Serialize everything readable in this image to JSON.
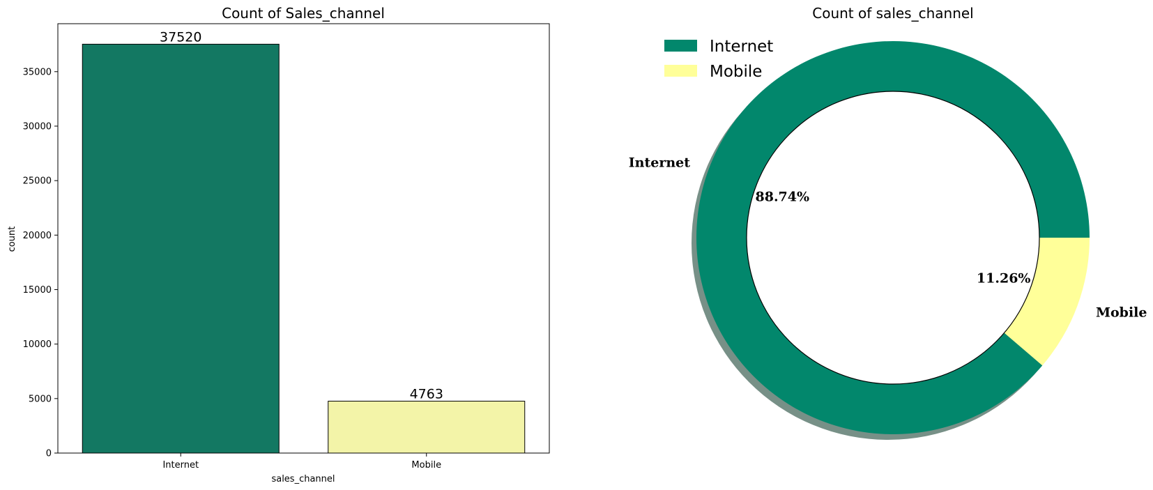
{
  "colors": {
    "internet_bar": "#137862",
    "mobile_bar": "#f3f4a8",
    "internet_donut": "#02876c",
    "mobile_donut": "#ffff99",
    "shadow": "#5f7d72",
    "axis": "#000000"
  },
  "chart_data": [
    {
      "type": "bar",
      "title": "Count of Sales_channel",
      "xlabel": "sales_channel",
      "ylabel": "count",
      "categories": [
        "Internet",
        "Mobile"
      ],
      "values": [
        37520,
        4763
      ],
      "value_labels": [
        "37520",
        "4763"
      ],
      "ylim": [
        0,
        39400
      ],
      "yticks": [
        0,
        5000,
        10000,
        15000,
        20000,
        25000,
        30000,
        35000
      ],
      "ytick_labels": [
        "0",
        "5000",
        "10000",
        "15000",
        "20000",
        "25000",
        "30000",
        "35000"
      ],
      "grid": false
    },
    {
      "type": "pie",
      "title": "Count of sales_channel",
      "labels": [
        "Internet",
        "Mobile"
      ],
      "values": [
        37520,
        4763
      ],
      "pct_labels": [
        "88.74%",
        "11.26%"
      ],
      "donut": true,
      "shadow": true,
      "legend_position": "top-left",
      "legend": [
        "Internet",
        "Mobile"
      ]
    }
  ]
}
